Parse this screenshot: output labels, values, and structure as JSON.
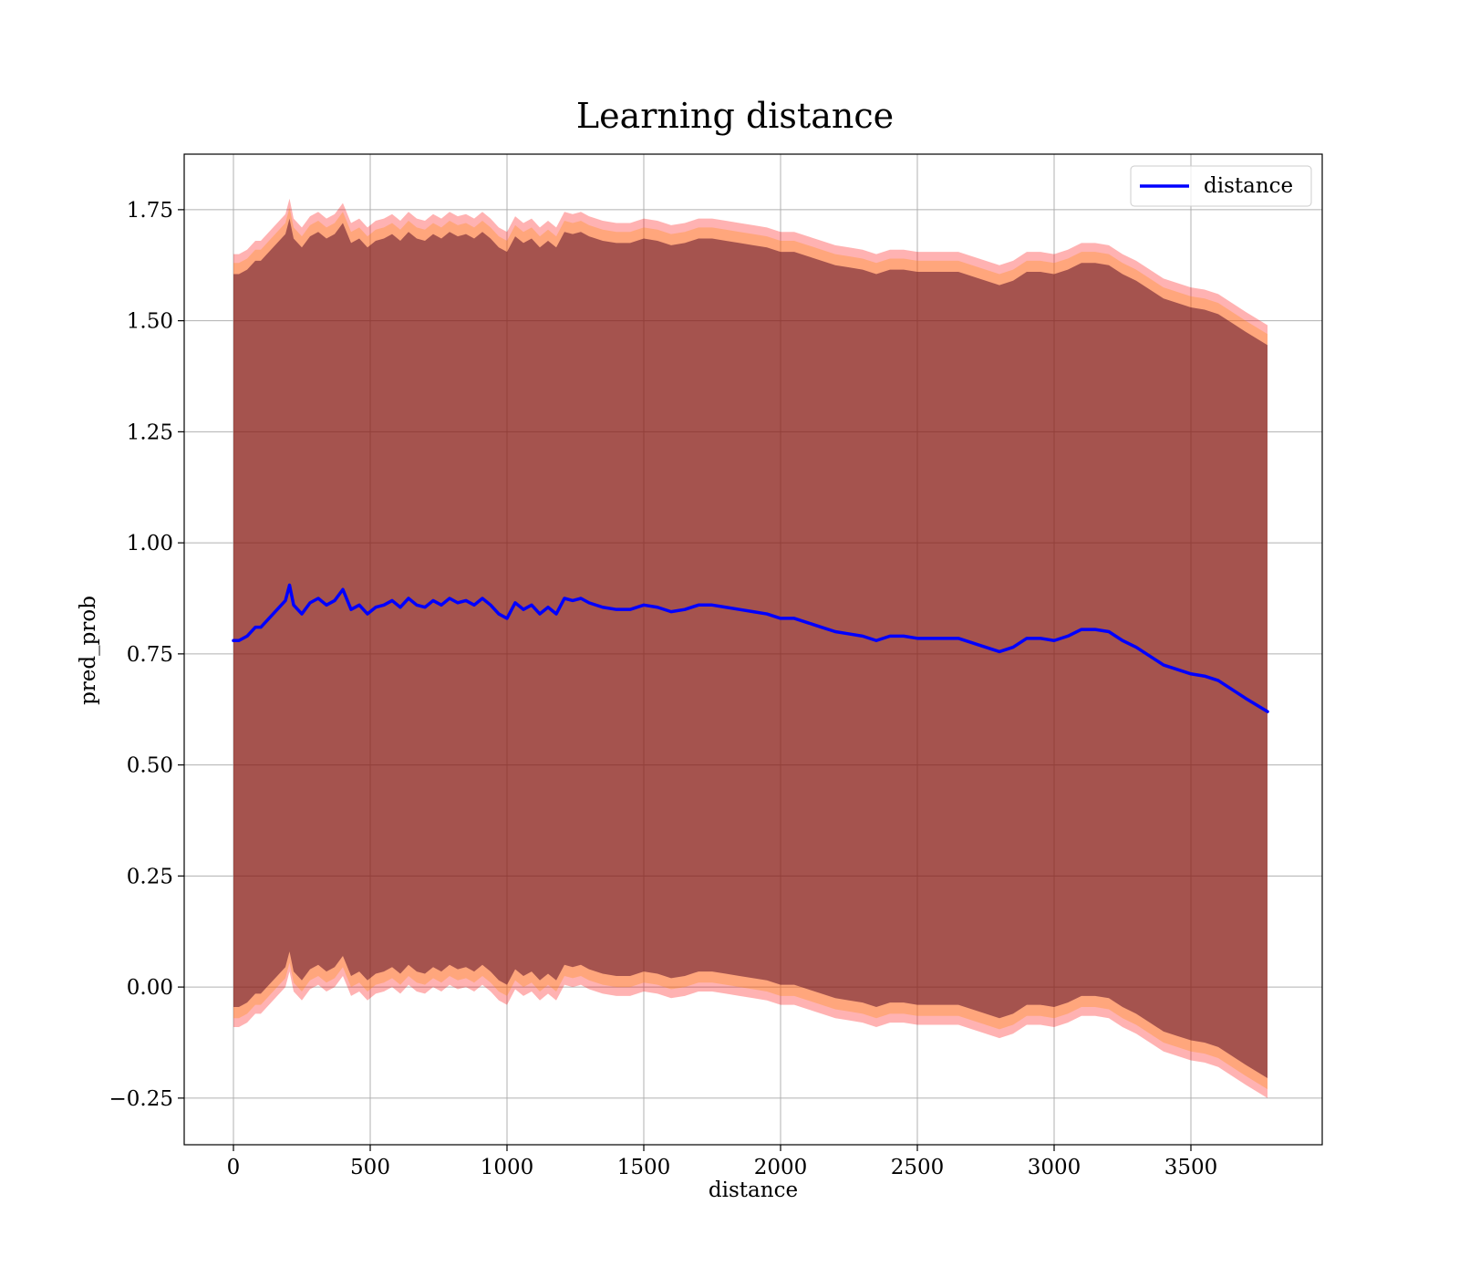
{
  "chart_data": {
    "type": "line",
    "title": "Learning distance",
    "xlabel": "distance",
    "ylabel": "pred_prob",
    "xlim": [
      -180,
      3980
    ],
    "ylim": [
      -0.355,
      1.875
    ],
    "xticks": [
      0,
      500,
      1000,
      1500,
      2000,
      2500,
      3000,
      3500
    ],
    "xtick_labels": [
      "0",
      "500",
      "1000",
      "1500",
      "2000",
      "2500",
      "3000",
      "3500"
    ],
    "yticks": [
      -0.25,
      0.0,
      0.25,
      0.5,
      0.75,
      1.0,
      1.25,
      1.5,
      1.75
    ],
    "ytick_labels": [
      "−0.25",
      "0.00",
      "0.25",
      "0.50",
      "0.75",
      "1.00",
      "1.25",
      "1.50",
      "1.75"
    ],
    "grid": true,
    "legend": {
      "position": "top-right",
      "entries": [
        "distance"
      ]
    },
    "series": [
      {
        "name": "distance",
        "color": "#0000ff",
        "x": [
          0,
          20,
          50,
          80,
          100,
          130,
          160,
          190,
          205,
          220,
          250,
          280,
          310,
          340,
          370,
          400,
          430,
          460,
          490,
          520,
          550,
          580,
          610,
          640,
          670,
          700,
          730,
          760,
          790,
          820,
          850,
          880,
          910,
          940,
          970,
          1000,
          1030,
          1060,
          1090,
          1120,
          1150,
          1180,
          1210,
          1240,
          1270,
          1300,
          1350,
          1400,
          1450,
          1500,
          1550,
          1600,
          1650,
          1700,
          1750,
          1800,
          1850,
          1900,
          1950,
          2000,
          2050,
          2100,
          2150,
          2200,
          2250,
          2300,
          2350,
          2400,
          2450,
          2500,
          2550,
          2600,
          2650,
          2700,
          2750,
          2800,
          2850,
          2900,
          2950,
          3000,
          3050,
          3100,
          3150,
          3200,
          3250,
          3300,
          3350,
          3400,
          3450,
          3500,
          3550,
          3600,
          3650,
          3700,
          3780
        ],
        "y": [
          0.78,
          0.78,
          0.79,
          0.81,
          0.81,
          0.83,
          0.85,
          0.87,
          0.905,
          0.86,
          0.84,
          0.865,
          0.875,
          0.86,
          0.87,
          0.895,
          0.85,
          0.86,
          0.84,
          0.855,
          0.86,
          0.87,
          0.855,
          0.875,
          0.86,
          0.855,
          0.87,
          0.86,
          0.875,
          0.865,
          0.87,
          0.86,
          0.875,
          0.86,
          0.84,
          0.83,
          0.865,
          0.85,
          0.86,
          0.84,
          0.855,
          0.84,
          0.875,
          0.87,
          0.875,
          0.865,
          0.855,
          0.85,
          0.85,
          0.86,
          0.855,
          0.845,
          0.85,
          0.86,
          0.86,
          0.855,
          0.85,
          0.845,
          0.84,
          0.83,
          0.83,
          0.82,
          0.81,
          0.8,
          0.795,
          0.79,
          0.78,
          0.79,
          0.79,
          0.785,
          0.785,
          0.785,
          0.785,
          0.775,
          0.765,
          0.755,
          0.765,
          0.785,
          0.785,
          0.78,
          0.79,
          0.805,
          0.805,
          0.8,
          0.78,
          0.765,
          0.745,
          0.725,
          0.715,
          0.705,
          0.7,
          0.69,
          0.67,
          0.65,
          0.62
        ]
      }
    ],
    "bands": {
      "outer_color": "#ff0000",
      "outer_opacity": 0.3,
      "middle_color": "#ff8c00",
      "middle_opacity": 0.3,
      "inner_color": "#4b0020",
      "inner_opacity": 0.5,
      "outer_halfwidth": 0.87,
      "middle_halfwidth": 0.85,
      "inner_halfwidth": 0.825
    }
  }
}
